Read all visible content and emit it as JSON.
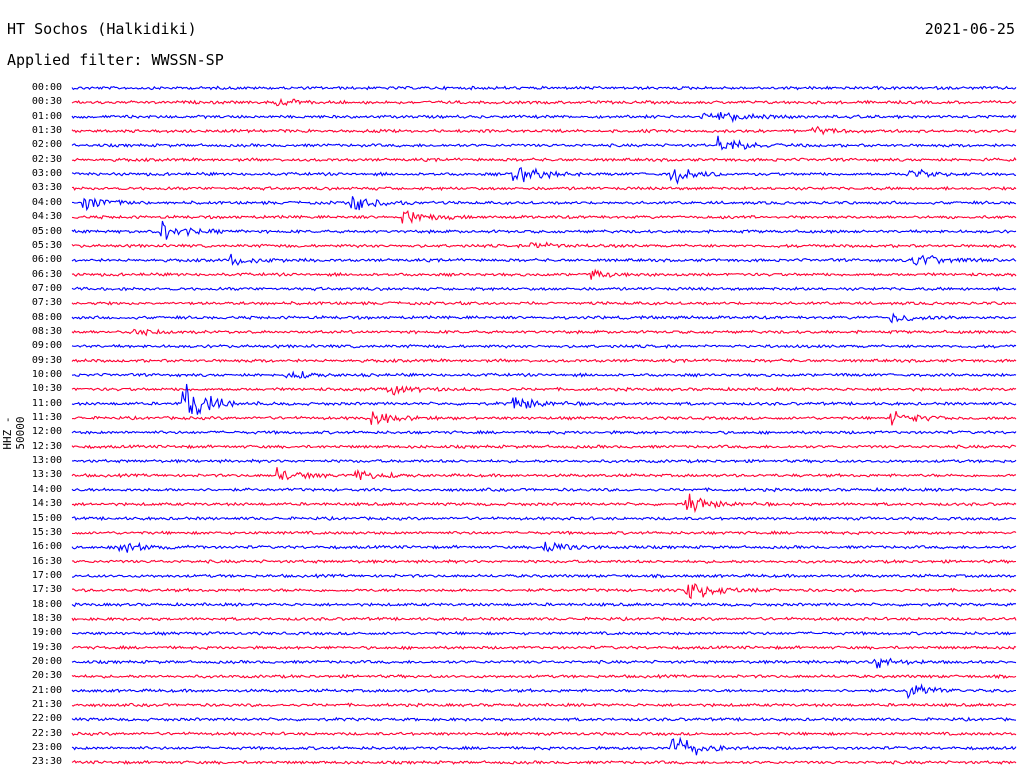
{
  "header": {
    "station": "HT Sochos (Halkidiki)",
    "date": "2021-06-25",
    "filter": "Applied filter: WWSSN-SP"
  },
  "chart_data": {
    "type": "line",
    "title": "HT Sochos (Halkidiki)",
    "ylabel": "HHZ - 50000",
    "xlabel": "",
    "row_labels": [
      "00:00",
      "00:30",
      "01:00",
      "01:30",
      "02:00",
      "02:30",
      "03:00",
      "03:30",
      "04:00",
      "04:30",
      "05:00",
      "05:30",
      "06:00",
      "06:30",
      "07:00",
      "07:30",
      "08:00",
      "08:30",
      "09:00",
      "09:30",
      "10:00",
      "10:30",
      "11:00",
      "11:30",
      "12:00",
      "12:30",
      "13:00",
      "13:30",
      "14:00",
      "14:30",
      "15:00",
      "15:30",
      "16:00",
      "16:30",
      "17:00",
      "17:30",
      "18:00",
      "18:30",
      "19:00",
      "19:30",
      "20:00",
      "20:30",
      "21:00",
      "21:30",
      "22:00",
      "22:30",
      "23:00",
      "23:30"
    ],
    "row_colors": [
      "#0000ff",
      "#ff0033"
    ],
    "trace_duration_minutes": 30,
    "events": [
      {
        "row": "00:30",
        "minute": 6.5,
        "amplitude": 0.3
      },
      {
        "row": "01:00",
        "minute": 20.0,
        "amplitude": 0.3
      },
      {
        "row": "01:00",
        "minute": 20.5,
        "amplitude": 0.35
      },
      {
        "row": "01:30",
        "minute": 23.5,
        "amplitude": 0.4
      },
      {
        "row": "02:00",
        "minute": 20.5,
        "amplitude": 0.9
      },
      {
        "row": "03:00",
        "minute": 14.0,
        "amplitude": 1.1
      },
      {
        "row": "03:00",
        "minute": 19.0,
        "amplitude": 1.0
      },
      {
        "row": "03:00",
        "minute": 26.5,
        "amplitude": 0.5
      },
      {
        "row": "04:00",
        "minute": 0.3,
        "amplitude": 0.8
      },
      {
        "row": "04:00",
        "minute": 8.8,
        "amplitude": 0.9
      },
      {
        "row": "04:30",
        "minute": 10.5,
        "amplitude": 0.6
      },
      {
        "row": "05:00",
        "minute": 2.8,
        "amplitude": 0.9
      },
      {
        "row": "05:30",
        "minute": 14.5,
        "amplitude": 0.4
      },
      {
        "row": "06:00",
        "minute": 5.0,
        "amplitude": 0.5
      },
      {
        "row": "06:00",
        "minute": 26.7,
        "amplitude": 0.8
      },
      {
        "row": "06:30",
        "minute": 16.5,
        "amplitude": 0.4
      },
      {
        "row": "08:00",
        "minute": 26.0,
        "amplitude": 0.5
      },
      {
        "row": "08:30",
        "minute": 1.8,
        "amplitude": 0.4
      },
      {
        "row": "10:00",
        "minute": 6.8,
        "amplitude": 0.4
      },
      {
        "row": "10:30",
        "minute": 10.0,
        "amplitude": 0.5
      },
      {
        "row": "11:00",
        "minute": 3.5,
        "amplitude": 2.2
      },
      {
        "row": "11:00",
        "minute": 14.0,
        "amplitude": 0.7
      },
      {
        "row": "11:30",
        "minute": 9.5,
        "amplitude": 0.6
      },
      {
        "row": "11:30",
        "minute": 26.0,
        "amplitude": 0.7
      },
      {
        "row": "13:30",
        "minute": 6.5,
        "amplitude": 0.6
      },
      {
        "row": "13:30",
        "minute": 9.0,
        "amplitude": 0.5
      },
      {
        "row": "14:30",
        "minute": 19.5,
        "amplitude": 0.8
      },
      {
        "row": "16:00",
        "minute": 1.5,
        "amplitude": 0.6
      },
      {
        "row": "16:00",
        "minute": 15.0,
        "amplitude": 0.6
      },
      {
        "row": "17:30",
        "minute": 19.5,
        "amplitude": 1.2
      },
      {
        "row": "20:00",
        "minute": 25.5,
        "amplitude": 0.5
      },
      {
        "row": "21:00",
        "minute": 26.5,
        "amplitude": 0.8
      },
      {
        "row": "23:00",
        "minute": 19.0,
        "amplitude": 1.5
      }
    ]
  }
}
